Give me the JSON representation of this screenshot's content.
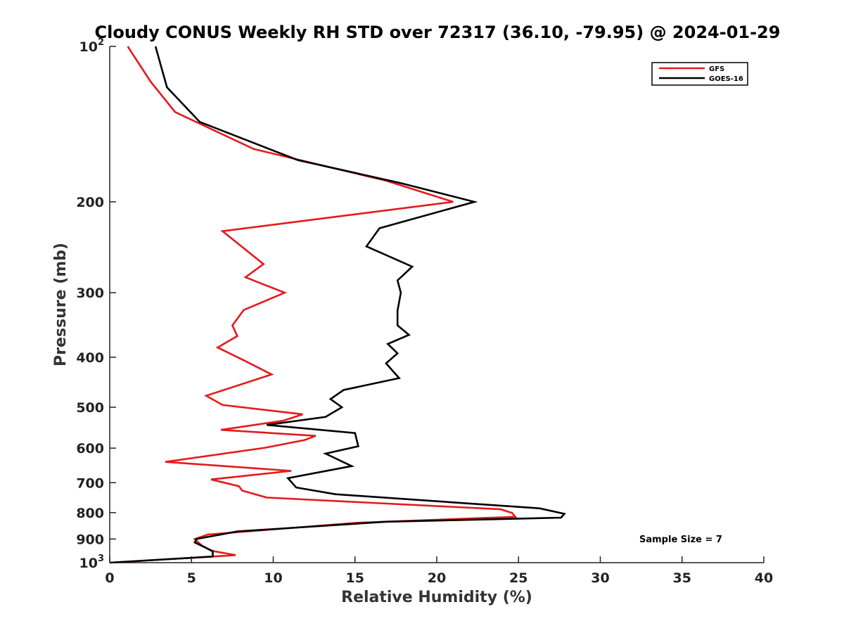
{
  "chart_data": {
    "type": "line",
    "title": "Cloudy CONUS Weekly RH STD over 72317 (36.10, -79.95) @ 2024-01-29",
    "xlabel": "Relative Humidity (%)",
    "ylabel": "Pressure (mb)",
    "xlim": [
      0,
      40
    ],
    "ylim": [
      100,
      1000
    ],
    "y_scale": "log",
    "y_reversed": true,
    "grid": false,
    "legend_position": "top-right",
    "x_ticks": [
      "0",
      "5",
      "10",
      "15",
      "20",
      "25",
      "30",
      "35",
      "40"
    ],
    "y_ticks": [
      {
        "base": "10",
        "exp": "2"
      },
      {
        "base": "200",
        "exp": ""
      },
      {
        "base": "300",
        "exp": ""
      },
      {
        "base": "400",
        "exp": ""
      },
      {
        "base": "500",
        "exp": ""
      },
      {
        "base": "600",
        "exp": ""
      },
      {
        "base": "700",
        "exp": ""
      },
      {
        "base": "800",
        "exp": ""
      },
      {
        "base": "900",
        "exp": ""
      },
      {
        "base": "10",
        "exp": "3"
      }
    ],
    "annotation": "Sample Size = 7",
    "series": [
      {
        "name": "GFS",
        "color": "#e41a1c",
        "points": [
          [
            1.1,
            100
          ],
          [
            2.5,
            117
          ],
          [
            4.0,
            134
          ],
          [
            8.8,
            158
          ],
          [
            16.9,
            182
          ],
          [
            21.0,
            200
          ],
          [
            6.9,
            228
          ],
          [
            9.4,
            264
          ],
          [
            8.3,
            280
          ],
          [
            10.7,
            300
          ],
          [
            8.2,
            324
          ],
          [
            7.5,
            347
          ],
          [
            7.8,
            364
          ],
          [
            6.6,
            383
          ],
          [
            8.3,
            407
          ],
          [
            9.9,
            432
          ],
          [
            5.9,
            475
          ],
          [
            6.9,
            495
          ],
          [
            11.8,
            516
          ],
          [
            10.6,
            531
          ],
          [
            6.8,
            553
          ],
          [
            12.6,
            568
          ],
          [
            11.9,
            579
          ],
          [
            9.5,
            599
          ],
          [
            3.4,
            638
          ],
          [
            11.1,
            664
          ],
          [
            6.2,
            690
          ],
          [
            7.9,
            711
          ],
          [
            8.1,
            725
          ],
          [
            9.6,
            748
          ],
          [
            23.9,
            788
          ],
          [
            24.6,
            801
          ],
          [
            24.8,
            815
          ],
          [
            15.1,
            837
          ],
          [
            6.0,
            882
          ],
          [
            5.2,
            900
          ],
          [
            5.6,
            925
          ],
          [
            6.2,
            948
          ],
          [
            7.7,
            967
          ],
          [
            0.0,
            1000
          ]
        ]
      },
      {
        "name": "GOES-16",
        "color": "#000000",
        "points": [
          [
            2.8,
            100
          ],
          [
            3.5,
            120
          ],
          [
            5.5,
            140
          ],
          [
            11.5,
            166
          ],
          [
            17.8,
            184
          ],
          [
            22.3,
            200
          ],
          [
            16.5,
            225
          ],
          [
            15.7,
            244
          ],
          [
            18.5,
            267
          ],
          [
            17.6,
            284
          ],
          [
            17.8,
            300
          ],
          [
            17.6,
            325
          ],
          [
            17.6,
            347
          ],
          [
            18.3,
            362
          ],
          [
            17.0,
            377
          ],
          [
            17.6,
            393
          ],
          [
            16.9,
            411
          ],
          [
            17.7,
            439
          ],
          [
            14.3,
            463
          ],
          [
            13.5,
            482
          ],
          [
            14.2,
            500
          ],
          [
            13.2,
            522
          ],
          [
            9.6,
            541
          ],
          [
            15.0,
            561
          ],
          [
            15.2,
            595
          ],
          [
            13.2,
            615
          ],
          [
            14.8,
            650
          ],
          [
            10.9,
            686
          ],
          [
            11.4,
            715
          ],
          [
            13.8,
            737
          ],
          [
            26.3,
            785
          ],
          [
            27.8,
            804
          ],
          [
            27.6,
            818
          ],
          [
            16.9,
            833
          ],
          [
            7.8,
            870
          ],
          [
            5.3,
            900
          ],
          [
            5.2,
            914
          ],
          [
            6.3,
            950
          ],
          [
            6.3,
            973
          ],
          [
            0.0,
            1000
          ]
        ]
      }
    ]
  }
}
